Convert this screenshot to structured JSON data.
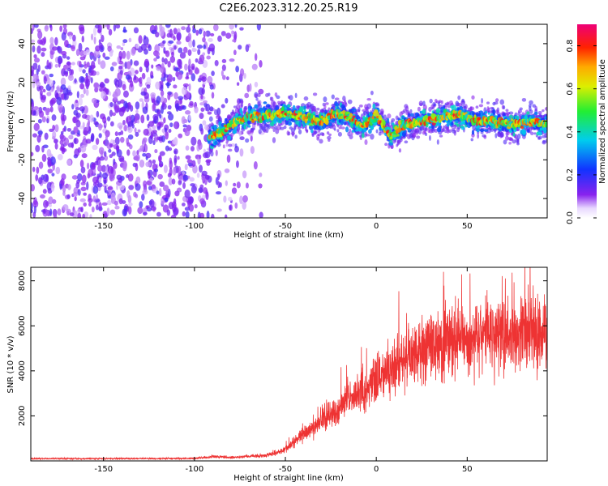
{
  "title": "C2E6.2023.312.20.25.R19",
  "chart_data": [
    {
      "type": "heatmap",
      "xlabel": "Height of straight line (km)",
      "ylabel": "Frequency (Hz)",
      "xlim": [
        -190,
        94
      ],
      "ylim": [
        -50,
        50
      ],
      "xticks": [
        -150,
        -100,
        -50,
        0,
        50
      ],
      "yticks": [
        -40,
        -20,
        0,
        20,
        40
      ],
      "colorbar": {
        "label": "Normalized spectral amplitude",
        "range": [
          0,
          0.9
        ],
        "ticks": [
          0.0,
          0.2,
          0.4,
          0.6,
          0.8
        ],
        "colormap": "rainbow (white-purple-blue-cyan-green-yellow-orange-red-pink)"
      },
      "features": {
        "noise_region_x": [
          -190,
          -62
        ],
        "dense_noise_x": [
          -190,
          -90
        ],
        "signal_start_x": -92,
        "signal_centerline": [
          [
            -92,
            -8
          ],
          [
            -85,
            -6
          ],
          [
            -78,
            0
          ],
          [
            -70,
            2
          ],
          [
            -60,
            3
          ],
          [
            -50,
            4
          ],
          [
            -40,
            2
          ],
          [
            -30,
            0
          ],
          [
            -22,
            4
          ],
          [
            -15,
            2
          ],
          [
            -8,
            -3
          ],
          [
            0,
            3
          ],
          [
            8,
            -8
          ],
          [
            15,
            -2
          ],
          [
            25,
            0
          ],
          [
            35,
            2
          ],
          [
            45,
            3
          ],
          [
            55,
            0
          ],
          [
            65,
            0
          ],
          [
            75,
            -2
          ],
          [
            85,
            0
          ],
          [
            94,
            -2
          ]
        ]
      }
    },
    {
      "type": "line",
      "xlabel": "Height of straight line (km)",
      "ylabel": "SNR (10 * v/v)",
      "xlim": [
        -190,
        94
      ],
      "ylim": [
        0,
        8600
      ],
      "xticks": [
        -150,
        -100,
        -50,
        0,
        50
      ],
      "yticks": [
        2000,
        4000,
        6000,
        8000
      ],
      "color": "#ee3333",
      "series": [
        {
          "values_envelope": [
            [
              -190,
              100
            ],
            [
              -150,
              100
            ],
            [
              -100,
              110
            ],
            [
              -88,
              200
            ],
            [
              -80,
              150
            ],
            [
              -60,
              250
            ],
            [
              -50,
              500
            ],
            [
              -40,
              1200
            ],
            [
              -30,
              1800
            ],
            [
              -20,
              2400
            ],
            [
              -10,
              3000
            ],
            [
              0,
              3600
            ],
            [
              10,
              4200
            ],
            [
              20,
              4800
            ],
            [
              30,
              5200
            ],
            [
              40,
              5400
            ],
            [
              50,
              5400
            ],
            [
              60,
              5500
            ],
            [
              70,
              5600
            ],
            [
              80,
              5700
            ],
            [
              94,
              5500
            ]
          ]
        }
      ]
    }
  ]
}
